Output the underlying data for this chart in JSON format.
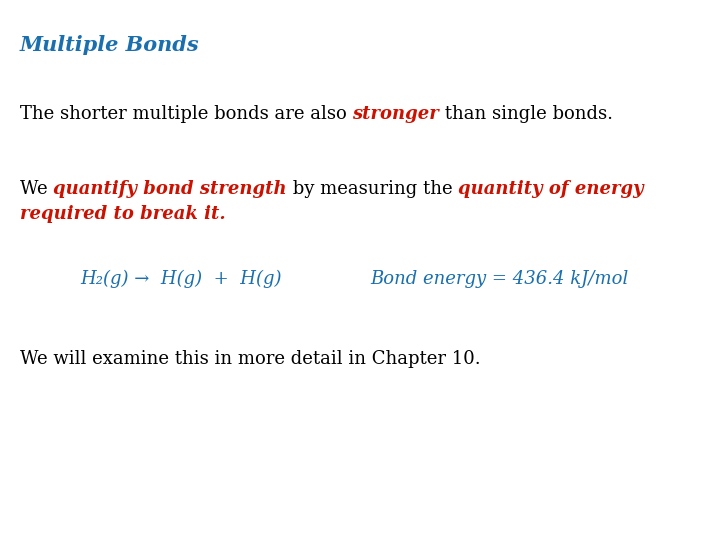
{
  "background_color": "#ffffff",
  "title": "Multiple Bonds",
  "title_color": "#1a6faf",
  "title_fontsize": 15,
  "line1_parts": [
    {
      "text": "The shorter multiple bonds are also ",
      "color": "#000000",
      "bold": false,
      "italic": false
    },
    {
      "text": "stronger",
      "color": "#cc1100",
      "bold": true,
      "italic": true
    },
    {
      "text": " than single bonds.",
      "color": "#000000",
      "bold": false,
      "italic": false
    }
  ],
  "line2_parts": [
    {
      "text": "We ",
      "color": "#000000",
      "bold": false,
      "italic": false
    },
    {
      "text": "quantify bond strength",
      "color": "#cc1100",
      "bold": true,
      "italic": true
    },
    {
      "text": " by measuring the ",
      "color": "#000000",
      "bold": false,
      "italic": false
    },
    {
      "text": "quantity of energy",
      "color": "#cc1100",
      "bold": true,
      "italic": true
    }
  ],
  "line3_parts": [
    {
      "text": "required to break it.",
      "color": "#cc1100",
      "bold": true,
      "italic": true
    }
  ],
  "equation_color": "#1a6faf",
  "equation_fontsize": 13,
  "line4_eq": "H₂(g) →  H(g)  +  H(g)",
  "line4_energy": "Bond energy = 436.4 kJ/mol",
  "line5": "We will examine this in more detail in Chapter 10.",
  "body_fontsize": 13,
  "fig_width": 7.2,
  "fig_height": 5.4,
  "dpi": 100
}
